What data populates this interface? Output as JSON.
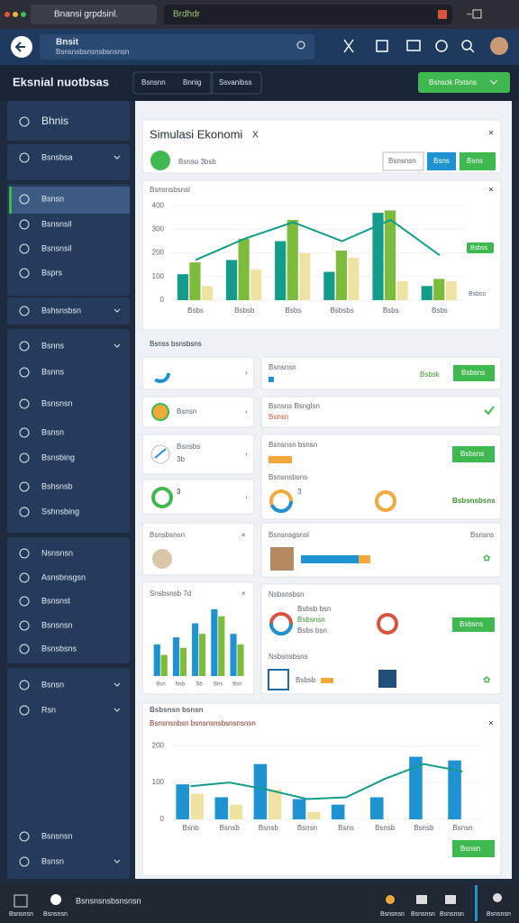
{
  "browser": {
    "tab": "Bnansi grpdsinl.",
    "address": "Brdhdr"
  },
  "header": {
    "logo": "Bnsit",
    "logo_sub": "Bsnsnsbsnsnsbsnsnsn"
  },
  "subheader": {
    "title": "Eksnial nuotbsas",
    "tabs": [
      "Bsnsnn",
      "Bnnig",
      "Ssvanibss"
    ],
    "button": "Bsnsok Rstsns"
  },
  "sidebar": {
    "items": [
      "Bhnis",
      "Bsnsbsa",
      "Bsnsn",
      "Bsnsnsil",
      "Bsnsnsil",
      "Bsprs",
      "Bshsnsbsn",
      "Bsnns",
      "Bsnns",
      "Bsnsnsn",
      "Bsnsn",
      "Bsnsbing",
      "Bshsnsb",
      "Sshnsbing",
      "Nsnsnsn",
      "Asnsbnsgsn",
      "Bsnsnst",
      "Bsnsnsn",
      "Bsnsbsns",
      "Bsnsn",
      "Rsn",
      "Bsnsnsn",
      "Bsnsn"
    ]
  },
  "main": {
    "card_title": "Simulasi Ekonomi",
    "card_close": "X",
    "card_text": "Bsnso 3bsb",
    "input": "Bsnsnsn",
    "button_blue": "Bsns",
    "button_green": "Bsns",
    "section": "Bsnss bsnsbsns",
    "left_cards": [
      "Bsnsn",
      "3",
      "Bsnsbs",
      "3b",
      "Bsnsbsnsn",
      "Snsbsnsb 7d"
    ],
    "right_cards": {
      "r1_title": "Bsnsnsn",
      "r1_tag": "Bsbsk",
      "r1_button": "Bsbsns",
      "r2_title": "Bsnsns Bsnglsn",
      "r2_sub": "Bsnsn",
      "r3_title": "Bsnsnsn bsnsn",
      "r3_button": "Bsbsns",
      "r3_sub": "Bsnsnsbsns",
      "r3_val": "3",
      "r3_green": "Bsbsnsbsns",
      "r4_title": "Bsnsnsgsnsl",
      "r4_sub": "Bsnsns",
      "r5_title": "Nsbsnsbsn",
      "r5_a": "Bsbsb bsn",
      "r5_b": "Bsbsnsn",
      "r5_c": "Bsbs bsn",
      "r5_button": "Bsbsns",
      "r5_sub": "Nsbsnsbsns",
      "r5_val": "Bsbsb"
    }
  },
  "bottom_card": {
    "title": "Bsbsnsn bsnsn",
    "subtitle": "Bsnsnsnbsn bsnsnsnsbsnsnsnsn",
    "button": "Bsnsn"
  },
  "taskbar": {
    "left": "Bsnsnsn",
    "left2": "Bsnsnsn",
    "center": "Bsnsnsnsbsnsnsn",
    "items": [
      "Bsnsnsn",
      "Bsnsnsn",
      "Bsnsnsn",
      "Bsnsnsn"
    ]
  },
  "chart_data": [
    {
      "type": "bar",
      "title": "Bsnsnsbsnsl",
      "categories": [
        "Bsbs",
        "Bsbsb",
        "Bsbs",
        "Bsbsbs",
        "Bsbs",
        "Bsbs"
      ],
      "series": [
        {
          "color": "#149c8a",
          "values": [
            110,
            170,
            250,
            120,
            370,
            60
          ]
        },
        {
          "color": "#7dbb3a",
          "values": [
            160,
            260,
            340,
            210,
            380,
            90
          ]
        },
        {
          "color": "#efe3a4",
          "values": [
            60,
            130,
            200,
            180,
            80,
            80
          ]
        },
        {
          "type": "line",
          "color": "#129e8a",
          "values": [
            170,
            260,
            330,
            250,
            340,
            190
          ]
        }
      ],
      "ylim": [
        0,
        420
      ],
      "yticks": [
        0,
        100,
        200,
        300,
        400
      ],
      "badge": "Bsbss",
      "badge2": "Bsbss"
    },
    {
      "type": "bar",
      "title": "Snsbsnsb",
      "categories": [
        "Bsn",
        "Nsb",
        "Sb",
        "Bns",
        "Bsn"
      ],
      "series": [
        {
          "color": "#1f93d1",
          "values": [
            45,
            55,
            75,
            95,
            60
          ]
        },
        {
          "color": "#7dbb3a",
          "values": [
            30,
            40,
            60,
            85,
            45
          ]
        }
      ],
      "ylim": [
        0,
        100
      ]
    },
    {
      "type": "bar",
      "title": "Bsnsbsnsn",
      "categories": [
        "Bsnb",
        "Bsnsb",
        "Bsnsb",
        "Bsnsn",
        "Bsns",
        "Bsnsb",
        "Bsnsb",
        "Bsnsn"
      ],
      "series": [
        {
          "color": "#1f93d1",
          "values": [
            95,
            60,
            150,
            55,
            40,
            60,
            170,
            160
          ]
        },
        {
          "color": "#efe3a4",
          "values": [
            70,
            40,
            80,
            20,
            0,
            0,
            0,
            0
          ]
        },
        {
          "type": "line",
          "color": "#149c8a",
          "values": [
            90,
            100,
            80,
            55,
            60,
            110,
            150,
            130
          ]
        }
      ],
      "ylim": [
        0,
        230
      ],
      "yticks": [
        0,
        100,
        200
      ]
    }
  ]
}
